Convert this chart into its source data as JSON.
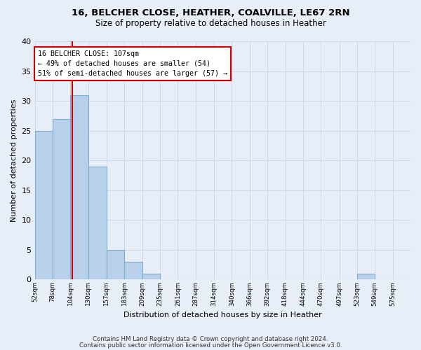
{
  "title1": "16, BELCHER CLOSE, HEATHER, COALVILLE, LE67 2RN",
  "title2": "Size of property relative to detached houses in Heather",
  "xlabel": "Distribution of detached houses by size in Heather",
  "ylabel": "Number of detached properties",
  "bar_values": [
    25,
    27,
    31,
    19,
    5,
    3,
    1,
    0,
    0,
    0,
    0,
    0,
    0,
    0,
    0,
    0,
    0,
    0,
    1,
    0,
    0
  ],
  "bin_edges": [
    52,
    78,
    104,
    130,
    157,
    183,
    209,
    235,
    261,
    287,
    314,
    340,
    366,
    392,
    418,
    444,
    470,
    497,
    523,
    549,
    575,
    601
  ],
  "tick_labels": [
    "52sqm",
    "78sqm",
    "104sqm",
    "130sqm",
    "157sqm",
    "183sqm",
    "209sqm",
    "235sqm",
    "261sqm",
    "287sqm",
    "314sqm",
    "340sqm",
    "366sqm",
    "392sqm",
    "418sqm",
    "444sqm",
    "470sqm",
    "497sqm",
    "523sqm",
    "549sqm",
    "575sqm"
  ],
  "bar_color": "#b8d0ea",
  "bar_edge_color": "#7aafd4",
  "property_line_x": 107,
  "property_line_color": "#cc0000",
  "annotation_text": "16 BELCHER CLOSE: 107sqm\n← 49% of detached houses are smaller (54)\n51% of semi-detached houses are larger (57) →",
  "annotation_box_color": "#ffffff",
  "annotation_box_edge_color": "#cc0000",
  "ylim": [
    0,
    40
  ],
  "yticks": [
    0,
    5,
    10,
    15,
    20,
    25,
    30,
    35,
    40
  ],
  "grid_color": "#c8d4e8",
  "bg_color": "#e8eef8",
  "footer1": "Contains HM Land Registry data © Crown copyright and database right 2024.",
  "footer2": "Contains public sector information licensed under the Open Government Licence v3.0."
}
